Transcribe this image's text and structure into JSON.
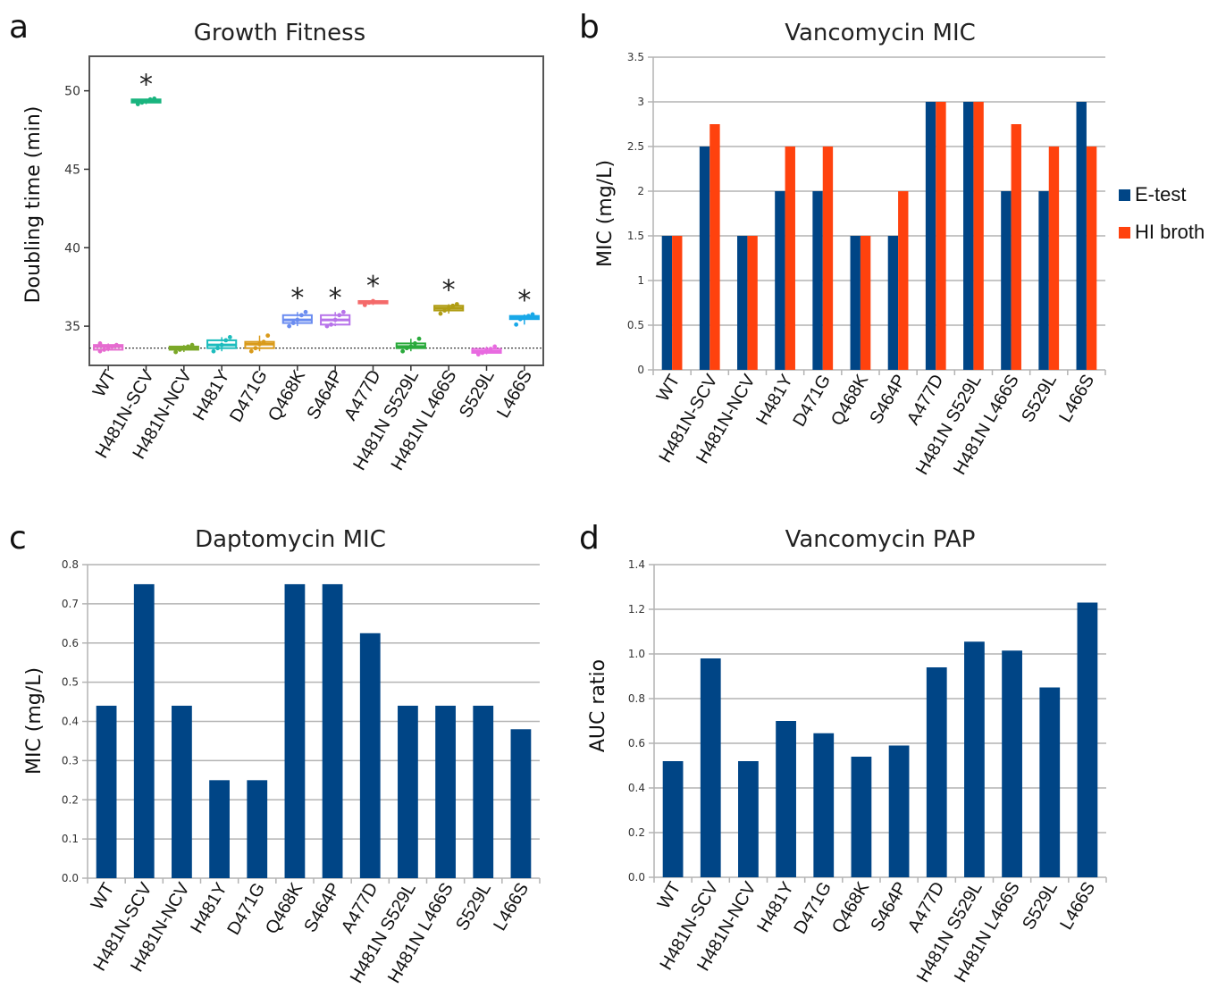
{
  "figure": {
    "panels": {
      "a": {
        "letter": "a",
        "title": "Growth Fitness"
      },
      "b": {
        "letter": "b",
        "title": "Vancomycin MIC"
      },
      "c": {
        "letter": "c",
        "title": "Daptomycin MIC"
      },
      "d": {
        "letter": "d",
        "title": "Vancomycin PAP"
      }
    }
  },
  "chart_data": [
    {
      "panel": "a",
      "type": "box",
      "title": "Growth Fitness",
      "xlabel": "",
      "ylabel": "Doubling time (min)",
      "ylim": [
        32.5,
        52.2
      ],
      "yticks": [
        35,
        40,
        45,
        50
      ],
      "reference_line": {
        "y": 33.6,
        "style": "dotted"
      },
      "significance_marker": "*",
      "grid": false,
      "categories": [
        "WT",
        "H481N-SCV",
        "H481N-NCV",
        "H481Y",
        "D471G",
        "Q468K",
        "S464P",
        "A477D",
        "H481N S529L",
        "H481N L466S",
        "S529L",
        "L466S"
      ],
      "colors": [
        "#e66bd0",
        "#19b47e",
        "#7ba828",
        "#1cbcbd",
        "#d99a1a",
        "#6a8cf0",
        "#b773ea",
        "#f46a6a",
        "#2aaa3c",
        "#b09d14",
        "#e86ae0",
        "#18a8e8"
      ],
      "boxes": [
        {
          "q1": 33.5,
          "median": 33.7,
          "q3": 33.8,
          "min": 33.4,
          "max": 33.9,
          "points": [
            33.4,
            33.5,
            33.6,
            33.7,
            33.8,
            33.9
          ],
          "significant": false
        },
        {
          "q1": 49.25,
          "median": 49.35,
          "q3": 49.45,
          "min": 49.15,
          "max": 49.5,
          "points": [
            49.15,
            49.25,
            49.35,
            49.45,
            49.5
          ],
          "significant": true
        },
        {
          "q1": 33.5,
          "median": 33.6,
          "q3": 33.7,
          "min": 33.35,
          "max": 33.8,
          "points": [
            33.35,
            33.5,
            33.6,
            33.7,
            33.8
          ],
          "significant": false
        },
        {
          "q1": 33.6,
          "median": 33.8,
          "q3": 34.1,
          "min": 33.4,
          "max": 34.3,
          "points": [
            33.4,
            33.6,
            33.8,
            34.1,
            34.3
          ],
          "significant": false
        },
        {
          "q1": 33.6,
          "median": 33.85,
          "q3": 34.0,
          "min": 33.4,
          "max": 34.4,
          "points": [
            33.4,
            33.6,
            33.85,
            34.0,
            34.4
          ],
          "significant": false
        },
        {
          "q1": 35.2,
          "median": 35.4,
          "q3": 35.7,
          "min": 35.0,
          "max": 35.9,
          "points": [
            35.0,
            35.2,
            35.4,
            35.7,
            35.9
          ],
          "significant": true
        },
        {
          "q1": 35.1,
          "median": 35.4,
          "q3": 35.7,
          "min": 35.0,
          "max": 35.9,
          "points": [
            35.0,
            35.1,
            35.4,
            35.7,
            35.9
          ],
          "significant": true
        },
        {
          "q1": 36.45,
          "median": 36.5,
          "q3": 36.6,
          "min": 36.35,
          "max": 36.65,
          "points": [
            36.35,
            36.5,
            36.6
          ],
          "significant": true
        },
        {
          "q1": 33.6,
          "median": 33.7,
          "q3": 33.9,
          "min": 33.4,
          "max": 34.2,
          "points": [
            33.4,
            33.6,
            33.7,
            33.9,
            34.2
          ],
          "significant": false
        },
        {
          "q1": 36.0,
          "median": 36.15,
          "q3": 36.3,
          "min": 35.8,
          "max": 36.4,
          "points": [
            35.8,
            36.0,
            36.15,
            36.3,
            36.4
          ],
          "significant": true
        },
        {
          "q1": 33.3,
          "median": 33.4,
          "q3": 33.55,
          "min": 33.2,
          "max": 33.7,
          "points": [
            33.2,
            33.3,
            33.4,
            33.55,
            33.7
          ],
          "significant": false
        },
        {
          "q1": 35.45,
          "median": 35.55,
          "q3": 35.65,
          "min": 35.1,
          "max": 35.75,
          "points": [
            35.1,
            35.45,
            35.55,
            35.65,
            35.75
          ],
          "significant": true
        }
      ]
    },
    {
      "panel": "b",
      "type": "bar",
      "title": "Vancomycin MIC",
      "xlabel": "",
      "ylabel": "MIC (mg/L)",
      "ylim": [
        0,
        3.5
      ],
      "yticks": [
        0,
        0.5,
        1,
        1.5,
        2,
        2.5,
        3,
        3.5
      ],
      "ytick_labels": [
        "0",
        "0.5",
        "1",
        "1.5",
        "2",
        "2.5",
        "3",
        "3.5"
      ],
      "grid": true,
      "legend": "right",
      "categories": [
        "WT",
        "H481N-SCV",
        "H481N-NCV",
        "H481Y",
        "D471G",
        "Q468K",
        "S464P",
        "A477D",
        "H481N S529L",
        "H481N L466S",
        "S529L",
        "L466S"
      ],
      "series": [
        {
          "name": "E-test",
          "color": "#004586",
          "values": [
            1.5,
            2.5,
            1.5,
            2,
            2,
            1.5,
            1.5,
            3,
            3,
            2,
            2,
            3
          ]
        },
        {
          "name": "HI broth",
          "color": "#ff420e",
          "values": [
            1.5,
            2.75,
            1.5,
            2.5,
            2.5,
            1.5,
            2,
            3,
            3,
            2.75,
            2.5,
            2.5
          ]
        }
      ]
    },
    {
      "panel": "c",
      "type": "bar",
      "title": "Daptomycin MIC",
      "xlabel": "",
      "ylabel": "MIC (mg/L)",
      "ylim": [
        0,
        0.8
      ],
      "yticks": [
        0,
        0.1,
        0.2,
        0.3,
        0.4,
        0.5,
        0.6,
        0.7,
        0.8
      ],
      "ytick_labels": [
        "0.0",
        "0.1",
        "0.2",
        "0.3",
        "0.4",
        "0.5",
        "0.6",
        "0.7",
        "0.8"
      ],
      "grid": true,
      "categories": [
        "WT",
        "H481N-SCV",
        "H481N-NCV",
        "H481Y",
        "D471G",
        "Q468K",
        "S464P",
        "A477D",
        "H481N S529L",
        "H481N L466S",
        "S529L",
        "L466S"
      ],
      "series": [
        {
          "color": "#004586",
          "values": [
            0.44,
            0.75,
            0.44,
            0.25,
            0.25,
            0.75,
            0.75,
            0.625,
            0.44,
            0.44,
            0.44,
            0.38
          ]
        }
      ]
    },
    {
      "panel": "d",
      "type": "bar",
      "title": "Vancomycin PAP",
      "xlabel": "",
      "ylabel": "AUC ratio",
      "ylim": [
        0,
        1.4
      ],
      "yticks": [
        0,
        0.2,
        0.4,
        0.6,
        0.8,
        1.0,
        1.2,
        1.4
      ],
      "ytick_labels": [
        "0.0",
        "0.2",
        "0.4",
        "0.6",
        "0.8",
        "1.0",
        "1.2",
        "1.4"
      ],
      "grid": true,
      "categories": [
        "WT",
        "H481N-SCV",
        "H481N-NCV",
        "H481Y",
        "D471G",
        "Q468K",
        "S464P",
        "A477D",
        "H481N S529L",
        "H481N L466S",
        "S529L",
        "L466S"
      ],
      "series": [
        {
          "color": "#004586",
          "values": [
            0.52,
            0.98,
            0.52,
            0.7,
            0.645,
            0.54,
            0.59,
            0.94,
            1.055,
            1.015,
            0.85,
            1.23
          ]
        }
      ]
    }
  ]
}
